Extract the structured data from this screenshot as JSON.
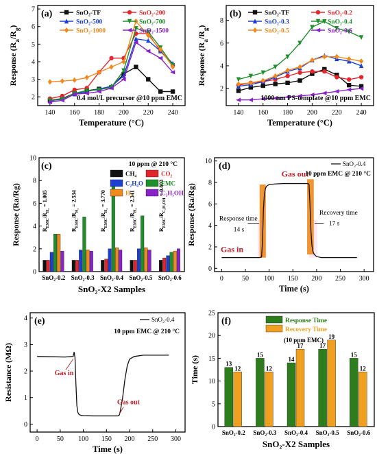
{
  "figure": {
    "panels": [
      {
        "id": "a",
        "tag": "(a)",
        "type": "line",
        "xlabel": "Temperature (°C)",
        "ylabel_main": "Response (R",
        "ylabel_sub1": "a",
        "ylabel_mid": "/R",
        "ylabel_sub2": "g",
        "ylabel_end": ")",
        "annotation": "0.4 mol/L precursor @10 ppm EMC",
        "xlim": [
          130,
          250
        ],
        "ylim": [
          1.5,
          7.2
        ],
        "xticks": [
          140,
          160,
          180,
          200,
          220,
          240
        ],
        "yticks": [
          2,
          3,
          4,
          5,
          6,
          7
        ],
        "series": [
          {
            "name": "SnO₂-TF",
            "color": "#111111",
            "marker": "square",
            "x": [
              140,
              150,
              160,
              170,
              180,
              190,
              200,
              210,
              220,
              230,
              240
            ],
            "y": [
              1.8,
              1.9,
              2.2,
              2.35,
              2.45,
              2.55,
              3.3,
              3.7,
              3.0,
              2.3,
              2.3
            ]
          },
          {
            "name": "SnO₂-200",
            "color": "#e3262b",
            "marker": "circle",
            "x": [
              140,
              150,
              160,
              170,
              180,
              190,
              200,
              210,
              220,
              230,
              240
            ],
            "y": [
              1.9,
              2.05,
              2.4,
              2.5,
              3.4,
              4.2,
              4.2,
              5.6,
              5.6,
              4.6,
              3.8
            ]
          },
          {
            "name": "SnO₂-500",
            "color": "#1c3fd1",
            "marker": "triangle",
            "x": [
              140,
              150,
              160,
              170,
              180,
              190,
              200,
              210,
              220,
              230,
              240
            ],
            "y": [
              1.75,
              1.9,
              2.15,
              2.3,
              2.45,
              2.6,
              3.2,
              5.3,
              5.2,
              4.6,
              3.9
            ]
          },
          {
            "name": "SnO₂-700",
            "color": "#1f8f2a",
            "marker": "triangle-down",
            "x": [
              140,
              150,
              160,
              170,
              180,
              190,
              200,
              210,
              220,
              230,
              240
            ],
            "y": [
              1.8,
              1.85,
              2.2,
              2.35,
              2.4,
              2.55,
              3.5,
              5.9,
              5.7,
              4.8,
              3.8
            ]
          },
          {
            "name": "SnO₂-1000",
            "color": "#f08a1c",
            "marker": "diamond",
            "x": [
              140,
              150,
              160,
              170,
              180,
              190,
              200,
              210,
              220,
              230,
              240
            ],
            "y": [
              2.85,
              2.9,
              2.95,
              3.1,
              3.4,
              3.7,
              4.0,
              6.3,
              5.5,
              4.7,
              3.7
            ]
          },
          {
            "name": "SnO₂-1500",
            "color": "#8a22c9",
            "marker": "triangle-left",
            "x": [
              140,
              150,
              160,
              170,
              180,
              190,
              200,
              210,
              220,
              230,
              240
            ],
            "y": [
              1.7,
              1.8,
              2.15,
              2.2,
              2.3,
              2.5,
              3.0,
              5.1,
              4.6,
              4.2,
              3.4
            ]
          }
        ]
      },
      {
        "id": "b",
        "tag": "(b)",
        "type": "line",
        "xlabel": "Temperature (°C)",
        "ylabel_main": "Response (R",
        "ylabel_sub1": "a",
        "ylabel_mid": "/R",
        "ylabel_sub2": "g",
        "ylabel_end": ")",
        "annotation": "1000 nm PS-template @10 ppm EMC",
        "xlim": [
          130,
          250
        ],
        "ylim": [
          0.5,
          9.3
        ],
        "xticks": [
          140,
          160,
          180,
          200,
          220,
          240
        ],
        "yticks": [
          2,
          4,
          6,
          8
        ],
        "series": [
          {
            "name": "SnO₂-TF",
            "color": "#111111",
            "marker": "square",
            "x": [
              140,
              150,
              160,
              170,
              180,
              190,
              200,
              210,
              220,
              230,
              240
            ],
            "y": [
              1.8,
              2.1,
              2.25,
              2.4,
              2.5,
              2.7,
              3.3,
              3.7,
              3.2,
              2.3,
              2.2
            ]
          },
          {
            "name": "SnO₂-0.2",
            "color": "#e3262b",
            "marker": "circle",
            "x": [
              140,
              150,
              160,
              170,
              180,
              190,
              200,
              210,
              220,
              230,
              240
            ],
            "y": [
              2.3,
              2.5,
              2.6,
              2.8,
              3.1,
              3.4,
              3.5,
              3.5,
              3.0,
              2.8,
              3.0
            ]
          },
          {
            "name": "SnO₂-0.3",
            "color": "#1c3fd1",
            "marker": "triangle",
            "x": [
              140,
              150,
              160,
              170,
              180,
              190,
              200,
              210,
              220,
              230,
              240
            ],
            "y": [
              2.2,
              2.35,
              2.6,
              3.0,
              3.5,
              3.8,
              4.5,
              4.9,
              4.6,
              4.4,
              4.0
            ]
          },
          {
            "name": "SnO₂-0.4",
            "color": "#1f8f2a",
            "marker": "triangle-down",
            "x": [
              140,
              150,
              160,
              170,
              180,
              190,
              200,
              210,
              220,
              230,
              240
            ],
            "y": [
              2.8,
              3.1,
              3.4,
              3.9,
              4.8,
              6.0,
              7.4,
              7.9,
              7.3,
              7.0,
              6.5
            ]
          },
          {
            "name": "SnO₂-0.5",
            "color": "#f08a1c",
            "marker": "diamond",
            "x": [
              140,
              150,
              160,
              170,
              180,
              190,
              200,
              210,
              220,
              230,
              240
            ],
            "y": [
              2.4,
              2.5,
              2.7,
              3.1,
              3.6,
              3.9,
              4.5,
              4.8,
              4.8,
              4.6,
              4.4
            ]
          },
          {
            "name": "SnO₂-0.6",
            "color": "#8a22c9",
            "marker": "triangle-left",
            "x": [
              140,
              150,
              160,
              170,
              180,
              190,
              200,
              210,
              220,
              230,
              240
            ],
            "y": [
              1.0,
              1.0,
              1.1,
              1.15,
              1.25,
              1.35,
              1.45,
              1.6,
              1.75,
              1.9,
              2.0
            ]
          }
        ]
      },
      {
        "id": "c",
        "tag": "(c)",
        "type": "bar",
        "xlabel": "SnO₂-X2 Samples",
        "ylabel": "Response (Ra/Rg)",
        "annotation": "10 ppm @ 210 °C",
        "ylim": [
          0,
          10
        ],
        "yticks": [
          0,
          2,
          4,
          6,
          8,
          10
        ],
        "categories": [
          "SnO₂-0.2",
          "SnO₂-0.3",
          "SnO₂-0.4",
          "SnO₂-0.5",
          "SnO₂-0.6"
        ],
        "series": [
          {
            "name": "CH₄",
            "color": "#111111",
            "values": [
              1.0,
              1.0,
              1.0,
              1.0,
              1.0
            ]
          },
          {
            "name": "CO₂",
            "color": "#e3262b",
            "values": [
              1.0,
              1.0,
              1.1,
              1.0,
              1.2
            ]
          },
          {
            "name": "C₂H₄O",
            "color": "#1c3fd1",
            "values": [
              1.7,
              1.9,
              2.0,
              2.0,
              1.4
            ]
          },
          {
            "name": "EMC",
            "color": "#1f8f2a",
            "values": [
              3.3,
              4.8,
              8.0,
              4.9,
              1.7
            ]
          },
          {
            "name": "H₂",
            "color": "#f08a1c",
            "values": [
              3.3,
              1.9,
              2.1,
              2.1,
              1.8
            ]
          },
          {
            "name": "C₂H₅OH",
            "color": "#8a22c9",
            "values": [
              1.8,
              1.8,
              1.9,
              1.9,
              2.0
            ]
          }
        ],
        "ratio_labels": [
          {
            "pre": "R",
            "sub1": "EMC",
            "mid": "/R",
            "sub2": "H₂",
            "val": " = 1.005"
          },
          {
            "pre": "R",
            "sub1": "EMC",
            "mid": "/R",
            "sub2": "H₂",
            "val": " = 2.534"
          },
          {
            "pre": "R",
            "sub1": "EMC",
            "mid": "/R",
            "sub2": "H₂",
            "val": " = 3.770"
          },
          {
            "pre": "R",
            "sub1": "EMC",
            "mid": "/R",
            "sub2": "H₂",
            "val": " = 2.341"
          },
          {
            "pre": "R",
            "sub1": "EMC",
            "mid": "/R",
            "sub2": "C₂H₅OH",
            "val": " = 0.803"
          }
        ]
      },
      {
        "id": "d",
        "tag": "(d)",
        "type": "line",
        "xlabel": "Time (s)",
        "ylabel": "Response (Ra/Rg)",
        "legend": "SnO₂-0.4",
        "annotation": "10 ppm EMC @ 210 °C",
        "xlim": [
          -15,
          320
        ],
        "ylim": [
          -0.3,
          10.3
        ],
        "xticks": [
          0,
          50,
          100,
          150,
          200,
          250,
          300
        ],
        "yticks": [
          0,
          2,
          4,
          6,
          8,
          10
        ],
        "series": [
          {
            "name": "SnO₂-0.4",
            "color": "#111111",
            "x": [
              0,
              20,
              40,
              60,
              80,
              84,
              86,
              88,
              90,
              92,
              94,
              96,
              100,
              110,
              130,
              160,
              182,
              184,
              186,
              188,
              190,
              192,
              195,
              200,
              210,
              230,
              260,
              285
            ],
            "y": [
              1.0,
              1.0,
              1.0,
              1.0,
              1.0,
              1.05,
              2.5,
              5.5,
              6.9,
              7.4,
              7.6,
              7.7,
              7.8,
              7.85,
              7.9,
              7.9,
              7.9,
              7.8,
              6.0,
              3.5,
              2.2,
              1.6,
              1.3,
              1.1,
              1.0,
              1.0,
              1.0,
              1.0
            ]
          }
        ],
        "labels": {
          "gas_in": "Gas in",
          "gas_out": "Gas out",
          "response": "Response time",
          "response_val": "14 s",
          "recovery": "Recovery time",
          "recovery_val": "17 s"
        }
      },
      {
        "id": "e",
        "tag": "(e)",
        "type": "line",
        "xlabel": "Time (s)",
        "ylabel": "Resistance (MΩ)",
        "legend": "SnO₂-0.4",
        "annotation": "10 ppm EMC @ 210 °C",
        "xlim": [
          -15,
          320
        ],
        "ylim": [
          -0.3,
          4.2
        ],
        "xticks": [
          0,
          50,
          100,
          150,
          200,
          250,
          300
        ],
        "yticks": [
          0,
          1,
          2,
          3,
          4
        ],
        "series": [
          {
            "name": "SnO₂-0.4",
            "color": "#111111",
            "x": [
              0,
              30,
              60,
              78,
              80,
              82,
              84,
              86,
              88,
              90,
              92,
              95,
              100,
              120,
              150,
              175,
              178,
              180,
              185,
              190,
              195,
              200,
              210,
              230,
              260,
              285
            ],
            "y": [
              2.55,
              2.54,
              2.53,
              2.55,
              2.72,
              2.5,
              1.5,
              0.7,
              0.45,
              0.38,
              0.35,
              0.33,
              0.32,
              0.31,
              0.31,
              0.31,
              0.35,
              0.5,
              1.0,
              1.7,
              2.2,
              2.45,
              2.55,
              2.6,
              2.6,
              2.6
            ]
          }
        ],
        "labels": {
          "gas_in": "Gas in",
          "gas_out": "Gas out"
        }
      },
      {
        "id": "f",
        "tag": "(f)",
        "type": "bar",
        "xlabel": "SnO₂-X2 Samples",
        "ylabel": "Time (s)",
        "ylim": [
          0,
          25
        ],
        "yticks": [
          0,
          5,
          10,
          15,
          20,
          25
        ],
        "categories": [
          "SnO₂-0.2",
          "SnO₂-0.3",
          "SnO₂-0.4",
          "SnO₂-0.5",
          "SnO₂-0.6"
        ],
        "series": [
          {
            "name": "Response Time",
            "color": "#2e7d1c",
            "values": [
              13,
              15,
              14,
              17,
              15
            ]
          },
          {
            "name": "Recovery Time",
            "color": "#f0a020",
            "values": [
              12,
              12,
              17,
              19,
              12
            ]
          }
        ],
        "legend_note": "(10 ppm EMC)"
      }
    ]
  }
}
